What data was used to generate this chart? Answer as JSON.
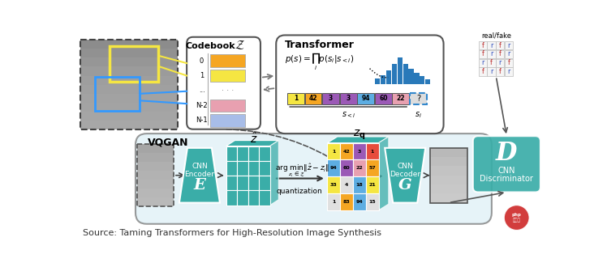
{
  "source_text": "Source: Taming Transformers for High-Resolution Image Synthesis",
  "bg_color": "#ffffff",
  "teal_color": "#3aada8",
  "light_blue_bg": "#daeef5",
  "codebook_entries": [
    {
      "label": "0",
      "color": "#f5a623"
    },
    {
      "label": "1",
      "color": "#f5e642"
    },
    {
      "label": "...",
      "color": "#f0f0f0"
    },
    {
      "label": "N-2",
      "color": "#e8a0b0"
    },
    {
      "label": "N-1",
      "color": "#a8bde8"
    }
  ],
  "seq_colors": [
    "#f5e642",
    "#f5a623",
    "#9b59b6",
    "#9b59b6",
    "#5dade2",
    "#9b59b6",
    "#e8a0b0"
  ],
  "seq_labels": [
    "1",
    "42",
    "3",
    "3",
    "94",
    "60",
    "22"
  ],
  "bar_heights": [
    8,
    14,
    22,
    32,
    42,
    32,
    24,
    18,
    12,
    7
  ],
  "bar_color": "#2979B9",
  "grid_colors_zq": [
    [
      "#f5e642",
      "#f5a623",
      "#9b59b6",
      "#e74c3c"
    ],
    [
      "#5dade2",
      "#9b59b6",
      "#e8a0b0",
      "#f5a623"
    ],
    [
      "#f5e642",
      "#e0e0e0",
      "#5dade2",
      "#f5e642"
    ],
    [
      "#e0e0e0",
      "#f5a623",
      "#5dade2",
      "#e0e0e0"
    ]
  ],
  "zq_numbers": [
    [
      "1",
      "42",
      "3",
      "1"
    ],
    [
      "94",
      "60",
      "22",
      "57"
    ],
    [
      "33",
      "4",
      "18",
      "21"
    ],
    [
      "1",
      "83",
      "94",
      "15"
    ]
  ],
  "rf_labels": [
    [
      "f",
      "r",
      "f",
      "r"
    ],
    [
      "f",
      "r",
      "f",
      "r"
    ],
    [
      "r",
      "f",
      "r",
      "f"
    ],
    [
      "f",
      "r",
      "f",
      "r"
    ]
  ],
  "dog_grays_top": [
    140,
    145,
    150,
    155,
    158,
    160,
    162,
    163,
    165,
    167
  ],
  "dog_grays_bot": [
    165,
    170,
    175,
    178,
    180,
    183,
    185
  ],
  "dog_grays_out": [
    185,
    190,
    195,
    198,
    200,
    202
  ]
}
